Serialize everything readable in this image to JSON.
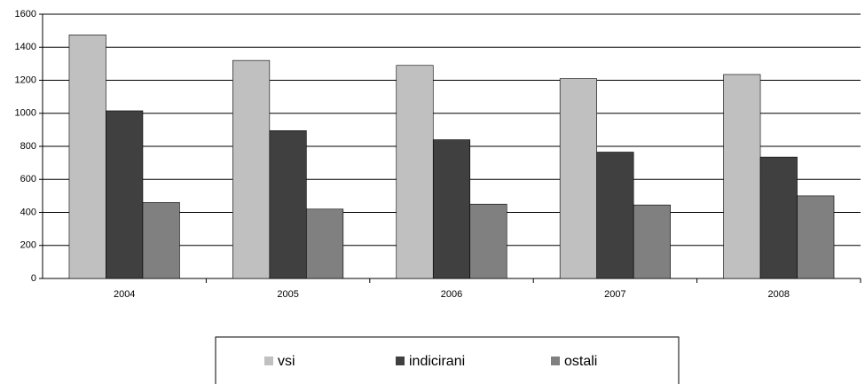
{
  "chart_data": {
    "type": "bar",
    "categories": [
      "2004",
      "2005",
      "2006",
      "2007",
      "2008"
    ],
    "series": [
      {
        "name": "vsi",
        "color": "#c0c0c0",
        "values": [
          1475,
          1320,
          1290,
          1210,
          1235
        ]
      },
      {
        "name": "indicirani",
        "color": "#404040",
        "values": [
          1015,
          895,
          840,
          765,
          735
        ]
      },
      {
        "name": "ostali",
        "color": "#808080",
        "values": [
          460,
          420,
          450,
          445,
          500
        ]
      }
    ],
    "ylim": [
      0,
      1600
    ],
    "yticks": [
      0,
      200,
      400,
      600,
      800,
      1000,
      1200,
      1400,
      1600
    ],
    "grid": true,
    "legend": "bottom"
  }
}
